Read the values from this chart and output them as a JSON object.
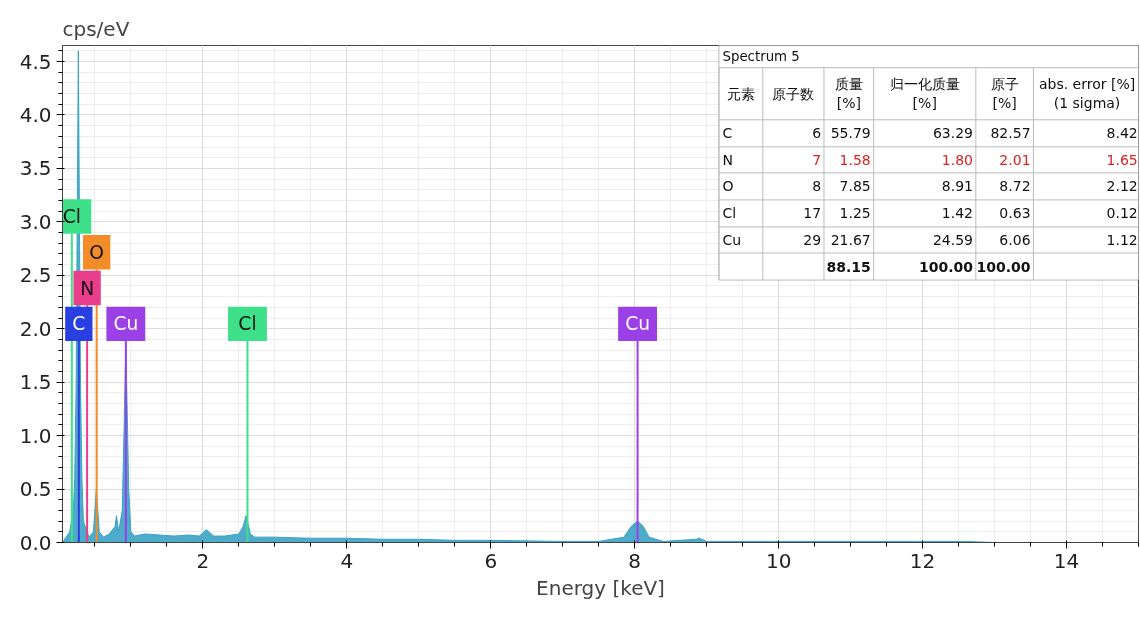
{
  "chart_data": {
    "type": "area",
    "xlabel": "Energy [keV]",
    "ylabel": "cps/eV",
    "xlim": [
      0.05,
      15.0
    ],
    "ylim": [
      0,
      4.65
    ],
    "xticks": [
      2,
      4,
      6,
      8,
      10,
      12,
      14
    ],
    "yticks": [
      {
        "value": 0,
        "label": "0.0"
      },
      {
        "value": 0.5,
        "label": "0.5"
      },
      {
        "value": 1,
        "label": "1.0"
      },
      {
        "value": 1.5,
        "label": "1.5"
      },
      {
        "value": 2,
        "label": "2.0"
      },
      {
        "value": 2.5,
        "label": "2.5"
      },
      {
        "value": 3,
        "label": "3.0"
      },
      {
        "value": 3.5,
        "label": "3.5"
      },
      {
        "value": 4,
        "label": "4.0"
      },
      {
        "value": 4.5,
        "label": "4.5"
      }
    ],
    "grid": true,
    "series": [
      {
        "color": "#3ba3c4",
        "x": [
          0.05,
          0.1,
          0.15,
          0.2,
          0.22,
          0.24,
          0.27,
          0.3,
          0.32,
          0.34,
          0.39,
          0.42,
          0.48,
          0.52,
          0.56,
          0.62,
          0.7,
          0.78,
          0.8,
          0.83,
          0.88,
          0.91,
          0.93,
          0.95,
          0.97,
          1.0,
          1.05,
          1.2,
          1.4,
          1.6,
          1.8,
          1.95,
          2.05,
          2.15,
          2.3,
          2.5,
          2.56,
          2.6,
          2.62,
          2.66,
          2.72,
          2.82,
          3.0,
          3.5,
          4.0,
          4.5,
          5.0,
          5.5,
          6.0,
          7.0,
          7.5,
          7.85,
          7.95,
          8.04,
          8.12,
          8.2,
          8.4,
          8.85,
          8.9,
          9.0,
          10.0,
          11.0,
          12.6,
          13.0,
          15.0
        ],
        "values": [
          0.0,
          0.05,
          0.1,
          0.3,
          0.6,
          1.5,
          4.6,
          1.5,
          0.6,
          0.2,
          0.1,
          0.05,
          0.1,
          0.5,
          0.1,
          0.05,
          0.08,
          0.15,
          0.25,
          0.1,
          0.3,
          1.2,
          1.85,
          1.2,
          0.5,
          0.1,
          0.06,
          0.08,
          0.07,
          0.06,
          0.07,
          0.06,
          0.12,
          0.06,
          0.06,
          0.08,
          0.15,
          0.25,
          0.2,
          0.08,
          0.05,
          0.05,
          0.05,
          0.04,
          0.04,
          0.03,
          0.03,
          0.02,
          0.02,
          0.01,
          0.01,
          0.05,
          0.15,
          0.2,
          0.15,
          0.05,
          0.01,
          0.03,
          0.04,
          0.01,
          0.01,
          0.01,
          0.01,
          0.0,
          0.0
        ]
      }
    ],
    "ref_lines": [
      {
        "axis": "x",
        "value": 0.277,
        "label": "C",
        "color": "#2a3fe0"
      },
      {
        "axis": "x",
        "value": 0.392,
        "label": "N",
        "color": "#e83e8c"
      },
      {
        "axis": "x",
        "value": 0.525,
        "label": "O",
        "color": "#f28c28"
      },
      {
        "axis": "x",
        "value": 0.18,
        "label": "Cl",
        "color": "#3ee08a"
      },
      {
        "axis": "x",
        "value": 0.93,
        "label": "Cu",
        "color": "#9b3fe6"
      },
      {
        "axis": "x",
        "value": 2.62,
        "label": "Cl",
        "color": "#3ee08a"
      },
      {
        "axis": "x",
        "value": 8.04,
        "label": "Cu",
        "color": "#9b3fe6"
      }
    ],
    "annotations": [
      "Spectrum 5",
      "元素",
      "原子数",
      "质量\n[%]",
      "归一化质量\n[%]",
      "原子\n[%]",
      "abs. error [%]\n(1 sigma)",
      "C",
      "6",
      "55.79",
      "63.29",
      "82.57",
      "8.42",
      "N",
      "7",
      "1.58",
      "1.80",
      "2.01",
      "1.65",
      "O",
      "8",
      "7.85",
      "8.91",
      "8.72",
      "2.12",
      "Cl",
      "17",
      "1.25",
      "1.42",
      "0.63",
      "0.12",
      "Cu",
      "29",
      "21.67",
      "24.59",
      "6.06",
      "1.12",
      "88.15",
      "100.00",
      "100.00"
    ]
  }
}
